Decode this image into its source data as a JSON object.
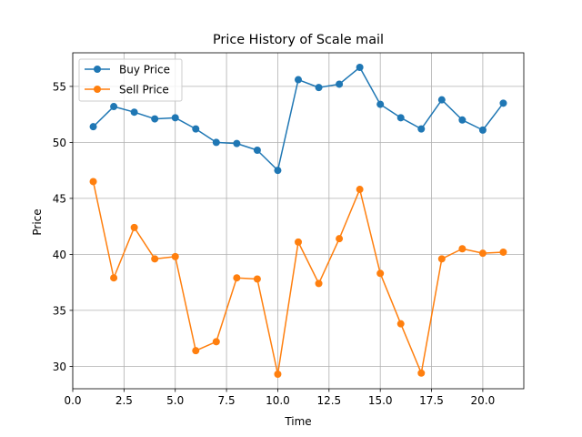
{
  "chart_data": {
    "type": "line",
    "title": "Price History of Scale mail",
    "xlabel": "Time",
    "ylabel": "Price",
    "xlim": [
      0.0,
      22.0
    ],
    "ylim": [
      28.0,
      58.0
    ],
    "xticks": [
      0.0,
      2.5,
      5.0,
      7.5,
      10.0,
      12.5,
      15.0,
      17.5,
      20.0
    ],
    "xtick_labels": [
      "0.0",
      "2.5",
      "5.0",
      "7.5",
      "10.0",
      "12.5",
      "15.0",
      "17.5",
      "20.0"
    ],
    "yticks": [
      30,
      35,
      40,
      45,
      50,
      55
    ],
    "ytick_labels": [
      "30",
      "35",
      "40",
      "45",
      "50",
      "55"
    ],
    "grid": true,
    "legend_position": "top-left",
    "x": [
      1,
      2,
      3,
      4,
      5,
      6,
      7,
      8,
      9,
      10,
      11,
      12,
      13,
      14,
      15,
      16,
      17,
      18,
      19,
      20,
      21
    ],
    "series": [
      {
        "name": "Buy Price",
        "color": "#1f77b4",
        "marker": "circle",
        "values": [
          51.4,
          53.2,
          52.7,
          52.1,
          52.2,
          51.2,
          50.0,
          49.9,
          49.3,
          47.5,
          55.6,
          54.9,
          55.2,
          56.7,
          53.4,
          52.2,
          51.2,
          53.8,
          52.0,
          51.1,
          53.5
        ]
      },
      {
        "name": "Sell Price",
        "color": "#ff7f0e",
        "marker": "circle",
        "values": [
          46.5,
          37.9,
          42.4,
          39.6,
          39.8,
          31.4,
          32.2,
          37.9,
          37.8,
          29.3,
          41.1,
          37.4,
          41.4,
          45.8,
          38.3,
          33.8,
          29.4,
          39.6,
          40.5,
          40.1,
          40.2
        ]
      }
    ]
  }
}
